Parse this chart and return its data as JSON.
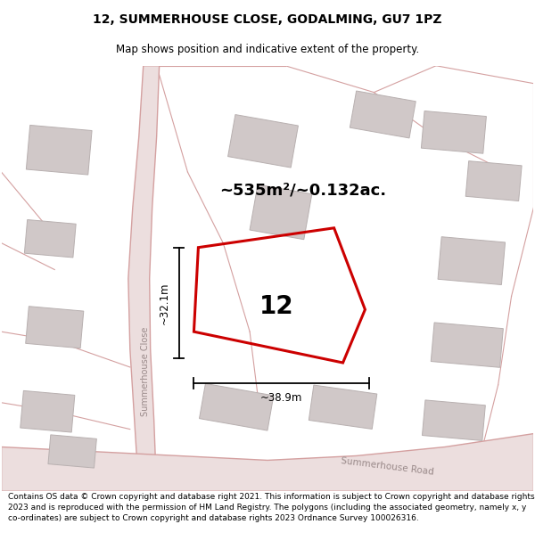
{
  "title": "12, SUMMERHOUSE CLOSE, GODALMING, GU7 1PZ",
  "subtitle": "Map shows position and indicative extent of the property.",
  "footer": "Contains OS data © Crown copyright and database right 2021. This information is subject to Crown copyright and database rights 2023 and is reproduced with the permission of HM Land Registry. The polygons (including the associated geometry, namely x, y co-ordinates) are subject to Crown copyright and database rights 2023 Ordnance Survey 100026316.",
  "area_label": "~535m²/~0.132ac.",
  "number_label": "12",
  "width_label": "~38.9m",
  "height_label": "~32.1m",
  "bg_color": "#ffffff",
  "map_bg": "#f7f2f2",
  "road_color": "#d4a0a0",
  "road_fill": "#ecdede",
  "building_fill": "#d0c8c8",
  "building_edge": "#b8b0b0",
  "property_color": "#cc0000",
  "dim_line_color": "#000000",
  "title_fontsize": 10,
  "subtitle_fontsize": 8.5,
  "footer_fontsize": 6.5,
  "area_fontsize": 13,
  "number_fontsize": 20,
  "dim_fontsize": 8.5,
  "street_fontsize": 7
}
